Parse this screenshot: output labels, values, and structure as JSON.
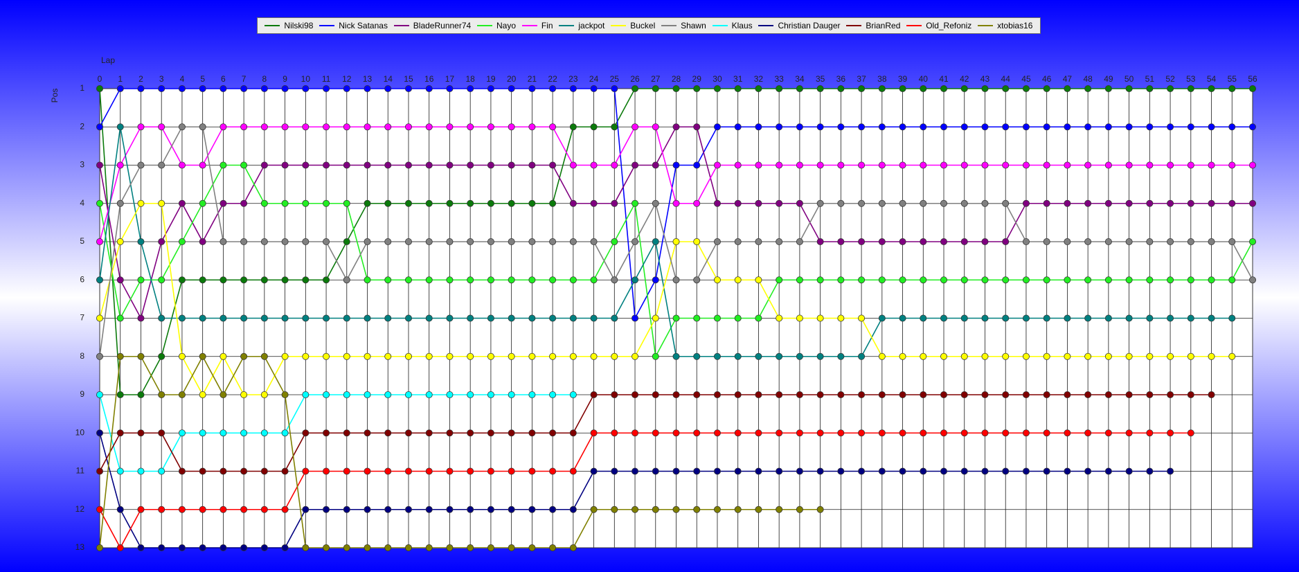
{
  "chart_data": {
    "type": "line",
    "xlabel": "Lap",
    "ylabel": "Pos",
    "legend": "top",
    "grid": true,
    "invert_y": true,
    "x": [
      0,
      1,
      2,
      3,
      4,
      5,
      6,
      7,
      8,
      9,
      10,
      11,
      12,
      13,
      14,
      15,
      16,
      17,
      18,
      19,
      20,
      21,
      22,
      23,
      24,
      25,
      26,
      27,
      28,
      29,
      30,
      31,
      32,
      33,
      34,
      35,
      36,
      37,
      38,
      39,
      40,
      41,
      42,
      43,
      44,
      45,
      46,
      47,
      48,
      49,
      50,
      51,
      52,
      53,
      54,
      55,
      56
    ],
    "xlim": [
      0,
      56
    ],
    "xticks": [
      0,
      1,
      2,
      3,
      4,
      5,
      6,
      7,
      8,
      9,
      10,
      11,
      12,
      13,
      14,
      15,
      16,
      17,
      18,
      19,
      20,
      21,
      22,
      23,
      24,
      25,
      26,
      27,
      28,
      29,
      30,
      31,
      32,
      33,
      34,
      35,
      36,
      37,
      38,
      39,
      40,
      41,
      42,
      43,
      44,
      45,
      46,
      47,
      48,
      49,
      50,
      51,
      52,
      53,
      54,
      55,
      56
    ],
    "ylim": [
      1,
      13
    ],
    "yticks": [
      1,
      2,
      3,
      4,
      5,
      6,
      7,
      8,
      9,
      10,
      11,
      12,
      13
    ],
    "series": [
      {
        "name": "Nilski98",
        "color": "#0b7a0b",
        "values": [
          1,
          9,
          9,
          8,
          6,
          6,
          6,
          6,
          6,
          6,
          6,
          6,
          5,
          4,
          4,
          4,
          4,
          4,
          4,
          4,
          4,
          4,
          4,
          2,
          2,
          2,
          1,
          1,
          1,
          1,
          1,
          1,
          1,
          1,
          1,
          1,
          1,
          1,
          1,
          1,
          1,
          1,
          1,
          1,
          1,
          1,
          1,
          1,
          1,
          1,
          1,
          1,
          1,
          1,
          1,
          1,
          1
        ]
      },
      {
        "name": "Nick Satanas",
        "color": "#0000ff",
        "values": [
          2,
          1,
          1,
          1,
          1,
          1,
          1,
          1,
          1,
          1,
          1,
          1,
          1,
          1,
          1,
          1,
          1,
          1,
          1,
          1,
          1,
          1,
          1,
          1,
          1,
          1,
          7,
          6,
          3,
          3,
          2,
          2,
          2,
          2,
          2,
          2,
          2,
          2,
          2,
          2,
          2,
          2,
          2,
          2,
          2,
          2,
          2,
          2,
          2,
          2,
          2,
          2,
          2,
          2,
          2,
          2,
          2
        ]
      },
      {
        "name": "BladeRunner74",
        "color": "#800080",
        "values": [
          3,
          6,
          7,
          5,
          4,
          5,
          4,
          4,
          3,
          3,
          3,
          3,
          3,
          3,
          3,
          3,
          3,
          3,
          3,
          3,
          3,
          3,
          3,
          4,
          4,
          4,
          3,
          3,
          2,
          2,
          4,
          4,
          4,
          4,
          4,
          5,
          5,
          5,
          5,
          5,
          5,
          5,
          5,
          5,
          5,
          4,
          4,
          4,
          4,
          4,
          4,
          4,
          4,
          4,
          4,
          4,
          4
        ]
      },
      {
        "name": "Nayo",
        "color": "#22ee22",
        "values": [
          4,
          7,
          6,
          6,
          5,
          4,
          3,
          3,
          4,
          4,
          4,
          4,
          4,
          6,
          6,
          6,
          6,
          6,
          6,
          6,
          6,
          6,
          6,
          6,
          6,
          5,
          4,
          8,
          7,
          7,
          7,
          7,
          7,
          6,
          6,
          6,
          6,
          6,
          6,
          6,
          6,
          6,
          6,
          6,
          6,
          6,
          6,
          6,
          6,
          6,
          6,
          6,
          6,
          6,
          6,
          6,
          5
        ]
      },
      {
        "name": "Fin",
        "color": "#ff00ff",
        "values": [
          5,
          3,
          2,
          2,
          3,
          3,
          2,
          2,
          2,
          2,
          2,
          2,
          2,
          2,
          2,
          2,
          2,
          2,
          2,
          2,
          2,
          2,
          2,
          3,
          3,
          3,
          2,
          2,
          4,
          4,
          3,
          3,
          3,
          3,
          3,
          3,
          3,
          3,
          3,
          3,
          3,
          3,
          3,
          3,
          3,
          3,
          3,
          3,
          3,
          3,
          3,
          3,
          3,
          3,
          3,
          3,
          3
        ]
      },
      {
        "name": "jackpot",
        "color": "#008080",
        "values": [
          6,
          2,
          5,
          7,
          7,
          7,
          7,
          7,
          7,
          7,
          7,
          7,
          7,
          7,
          7,
          7,
          7,
          7,
          7,
          7,
          7,
          7,
          7,
          7,
          7,
          7,
          6,
          5,
          8,
          8,
          8,
          8,
          8,
          8,
          8,
          8,
          8,
          8,
          7,
          7,
          7,
          7,
          7,
          7,
          7,
          7,
          7,
          7,
          7,
          7,
          7,
          7,
          7,
          7,
          7,
          7,
          null
        ]
      },
      {
        "name": "Buckel",
        "color": "#ffff00",
        "values": [
          7,
          5,
          4,
          4,
          8,
          9,
          8,
          9,
          9,
          8,
          8,
          8,
          8,
          8,
          8,
          8,
          8,
          8,
          8,
          8,
          8,
          8,
          8,
          8,
          8,
          8,
          8,
          7,
          5,
          5,
          6,
          6,
          6,
          7,
          7,
          7,
          7,
          7,
          8,
          8,
          8,
          8,
          8,
          8,
          8,
          8,
          8,
          8,
          8,
          8,
          8,
          8,
          8,
          8,
          8,
          8,
          null
        ]
      },
      {
        "name": "Shawn",
        "color": "#808080",
        "values": [
          8,
          4,
          3,
          3,
          2,
          2,
          5,
          5,
          5,
          5,
          5,
          5,
          6,
          5,
          5,
          5,
          5,
          5,
          5,
          5,
          5,
          5,
          5,
          5,
          5,
          6,
          5,
          4,
          6,
          6,
          5,
          5,
          5,
          5,
          5,
          4,
          4,
          4,
          4,
          4,
          4,
          4,
          4,
          4,
          4,
          5,
          5,
          5,
          5,
          5,
          5,
          5,
          5,
          5,
          5,
          5,
          6
        ]
      },
      {
        "name": "Klaus",
        "color": "#00ffff",
        "values": [
          9,
          11,
          11,
          11,
          10,
          10,
          10,
          10,
          10,
          10,
          9,
          9,
          9,
          9,
          9,
          9,
          9,
          9,
          9,
          9,
          9,
          9,
          9,
          9,
          null,
          null,
          null,
          null,
          null,
          null,
          null,
          null,
          null,
          null,
          null,
          null,
          null,
          null,
          null,
          null,
          null,
          null,
          null,
          null,
          null,
          null,
          null,
          null,
          null,
          null,
          null,
          null,
          null,
          null,
          null,
          null,
          null
        ]
      },
      {
        "name": "Christian Dauger",
        "color": "#000080",
        "values": [
          10,
          12,
          13,
          13,
          13,
          13,
          13,
          13,
          13,
          13,
          12,
          12,
          12,
          12,
          12,
          12,
          12,
          12,
          12,
          12,
          12,
          12,
          12,
          12,
          11,
          11,
          11,
          11,
          11,
          11,
          11,
          11,
          11,
          11,
          11,
          11,
          11,
          11,
          11,
          11,
          11,
          11,
          11,
          11,
          11,
          11,
          11,
          11,
          11,
          11,
          11,
          11,
          11,
          null,
          null,
          null,
          null
        ]
      },
      {
        "name": "BrianRed",
        "color": "#800000",
        "values": [
          11,
          10,
          10,
          10,
          11,
          11,
          11,
          11,
          11,
          11,
          10,
          10,
          10,
          10,
          10,
          10,
          10,
          10,
          10,
          10,
          10,
          10,
          10,
          10,
          9,
          9,
          9,
          9,
          9,
          9,
          9,
          9,
          9,
          9,
          9,
          9,
          9,
          9,
          9,
          9,
          9,
          9,
          9,
          9,
          9,
          9,
          9,
          9,
          9,
          9,
          9,
          9,
          9,
          9,
          9,
          null,
          null
        ]
      },
      {
        "name": "Old_Refoniz",
        "color": "#ff0000",
        "values": [
          12,
          13,
          12,
          12,
          12,
          12,
          12,
          12,
          12,
          12,
          11,
          11,
          11,
          11,
          11,
          11,
          11,
          11,
          11,
          11,
          11,
          11,
          11,
          11,
          10,
          10,
          10,
          10,
          10,
          10,
          10,
          10,
          10,
          10,
          10,
          10,
          10,
          10,
          10,
          10,
          10,
          10,
          10,
          10,
          10,
          10,
          10,
          10,
          10,
          10,
          10,
          10,
          10,
          10,
          null,
          null,
          null
        ]
      },
      {
        "name": "xtobias16",
        "color": "#808000",
        "values": [
          13,
          8,
          8,
          9,
          9,
          8,
          9,
          8,
          8,
          9,
          13,
          13,
          13,
          13,
          13,
          13,
          13,
          13,
          13,
          13,
          13,
          13,
          13,
          13,
          12,
          12,
          12,
          12,
          12,
          12,
          12,
          12,
          12,
          12,
          12,
          12,
          null,
          null,
          null,
          null,
          null,
          null,
          null,
          null,
          null,
          null,
          null,
          null,
          null,
          null,
          null,
          null,
          null,
          null,
          null,
          null,
          null
        ]
      }
    ]
  }
}
